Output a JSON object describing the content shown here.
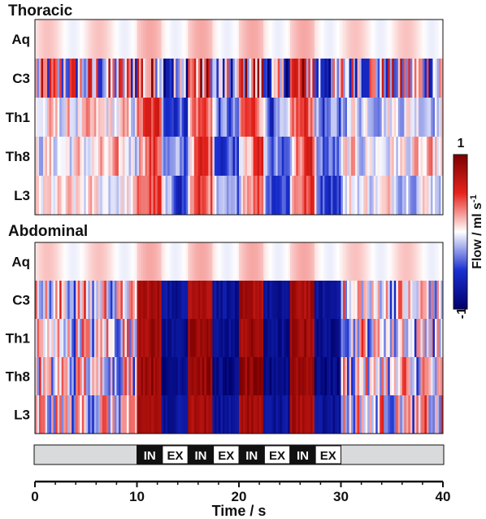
{
  "chart_data": [
    {
      "type": "heatmap",
      "title": "Thoracic",
      "rows": [
        "Aq",
        "C3",
        "Th1",
        "Th8",
        "L3"
      ],
      "x_range": [
        0,
        40
      ],
      "value_range": [
        -1,
        1
      ],
      "rows_data": [
        {
          "label": "Aq",
          "amplitude": 0.15,
          "pattern": "smooth-slow",
          "note": "near zero, faint pink bands"
        },
        {
          "label": "C3",
          "amplitude": 0.85,
          "pattern": "fast-alternating"
        },
        {
          "label": "Th1",
          "amplitude": 0.6,
          "pattern": "alternating"
        },
        {
          "label": "Th8",
          "amplitude": 0.6,
          "pattern": "alternating"
        },
        {
          "label": "L3",
          "amplitude": 0.5,
          "pattern": "alternating-red-blue"
        }
      ]
    },
    {
      "type": "heatmap",
      "title": "Abdominal",
      "rows": [
        "Aq",
        "C3",
        "Th1",
        "Th8",
        "L3"
      ],
      "x_range": [
        0,
        40
      ],
      "value_range": [
        -1,
        1
      ],
      "rows_data": [
        {
          "label": "Aq",
          "amplitude": 0.15,
          "pattern": "smooth-slow"
        },
        {
          "label": "C3",
          "amplitude": 0.9,
          "pattern": "breath-locked-strong"
        },
        {
          "label": "Th1",
          "amplitude": 0.95,
          "pattern": "breath-locked-strong"
        },
        {
          "label": "Th8",
          "amplitude": 1.0,
          "pattern": "breath-locked-strong"
        },
        {
          "label": "L3",
          "amplitude": 0.9,
          "pattern": "breath-locked-strong"
        }
      ]
    }
  ],
  "colorbar": {
    "label": "Flow / ml s",
    "label_sup": "-1",
    "max_label": "1",
    "min_label": "-1",
    "colors": {
      "max": "#7a0000",
      "pos": "#e8231c",
      "zero": "#ffffff",
      "neg": "#1a2fd0",
      "min": "#00006b"
    }
  },
  "breathing": {
    "bar_color": "#d9dadc",
    "phases": [
      {
        "label": "IN",
        "start": 10.0,
        "end": 12.5,
        "style": "dark"
      },
      {
        "label": "EX",
        "start": 12.5,
        "end": 15.0,
        "style": "light"
      },
      {
        "label": "IN",
        "start": 15.0,
        "end": 17.5,
        "style": "dark"
      },
      {
        "label": "EX",
        "start": 17.5,
        "end": 20.0,
        "style": "light"
      },
      {
        "label": "IN",
        "start": 20.0,
        "end": 22.5,
        "style": "dark"
      },
      {
        "label": "EX",
        "start": 22.5,
        "end": 25.0,
        "style": "light"
      },
      {
        "label": "IN",
        "start": 25.0,
        "end": 27.5,
        "style": "dark"
      },
      {
        "label": "EX",
        "start": 27.5,
        "end": 30.0,
        "style": "light"
      }
    ]
  },
  "x_axis": {
    "title": "Time / s",
    "ticks": [
      0,
      10,
      20,
      30,
      40
    ],
    "tick_labels": [
      "0",
      "10",
      "20",
      "30",
      "40"
    ],
    "range": [
      0,
      40
    ]
  }
}
